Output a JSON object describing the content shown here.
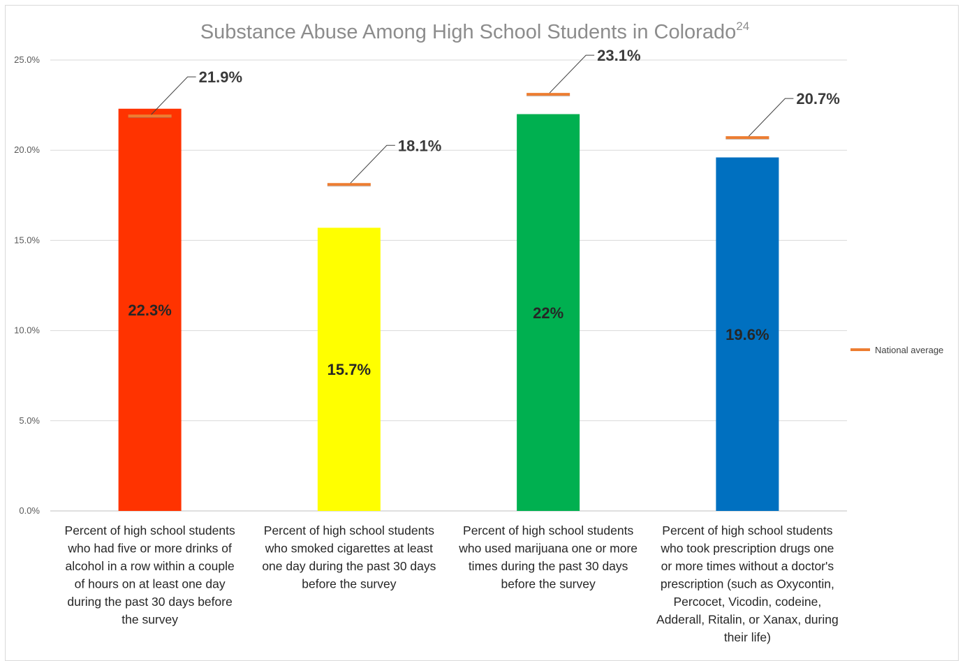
{
  "chart_data": {
    "type": "bar",
    "title": "Substance Abuse Among High School Students in Colorado",
    "title_superscript": "24",
    "ylim": [
      0,
      25
    ],
    "yticks": [
      "0.0%",
      "5.0%",
      "10.0%",
      "15.0%",
      "20.0%",
      "25.0%"
    ],
    "grid": true,
    "categories": [
      [
        "Percent of high school students",
        "who had five or more drinks of",
        "alcohol in a row within a couple",
        "of hours on at least one day",
        "during the past 30 days before",
        "the survey"
      ],
      [
        "Percent of high school students",
        "who smoked cigarettes at least",
        "one day during the past 30 days",
        "before the  survey"
      ],
      [
        "Percent of high school students",
        "who used marijuana one or more",
        "times during the past 30 days",
        "before the survey"
      ],
      [
        "Percent of high school students",
        "who took prescription drugs one",
        "or more times without a doctor's",
        "prescription (such as Oxycontin,",
        "Percocet, Vicodin, codeine,",
        "Adderall, Ritalin, or Xanax, during",
        "their life)"
      ]
    ],
    "series": [
      {
        "values": [
          22.3,
          15.7,
          22,
          19.6
        ],
        "data_labels": [
          "22.3%",
          "15.7%",
          "22%",
          "19.6%"
        ],
        "colors": [
          "#ff3300",
          "#ffff00",
          "#00b050",
          "#0070c0"
        ]
      },
      {
        "name": "National average",
        "type": "marker",
        "values": [
          21.9,
          18.1,
          23.1,
          20.7
        ],
        "data_labels": [
          "21.9%",
          "18.1%",
          "23.1%",
          "20.7%"
        ],
        "color": "#f4b183"
      }
    ],
    "legend": {
      "position": "right",
      "items": [
        "National average"
      ]
    }
  }
}
